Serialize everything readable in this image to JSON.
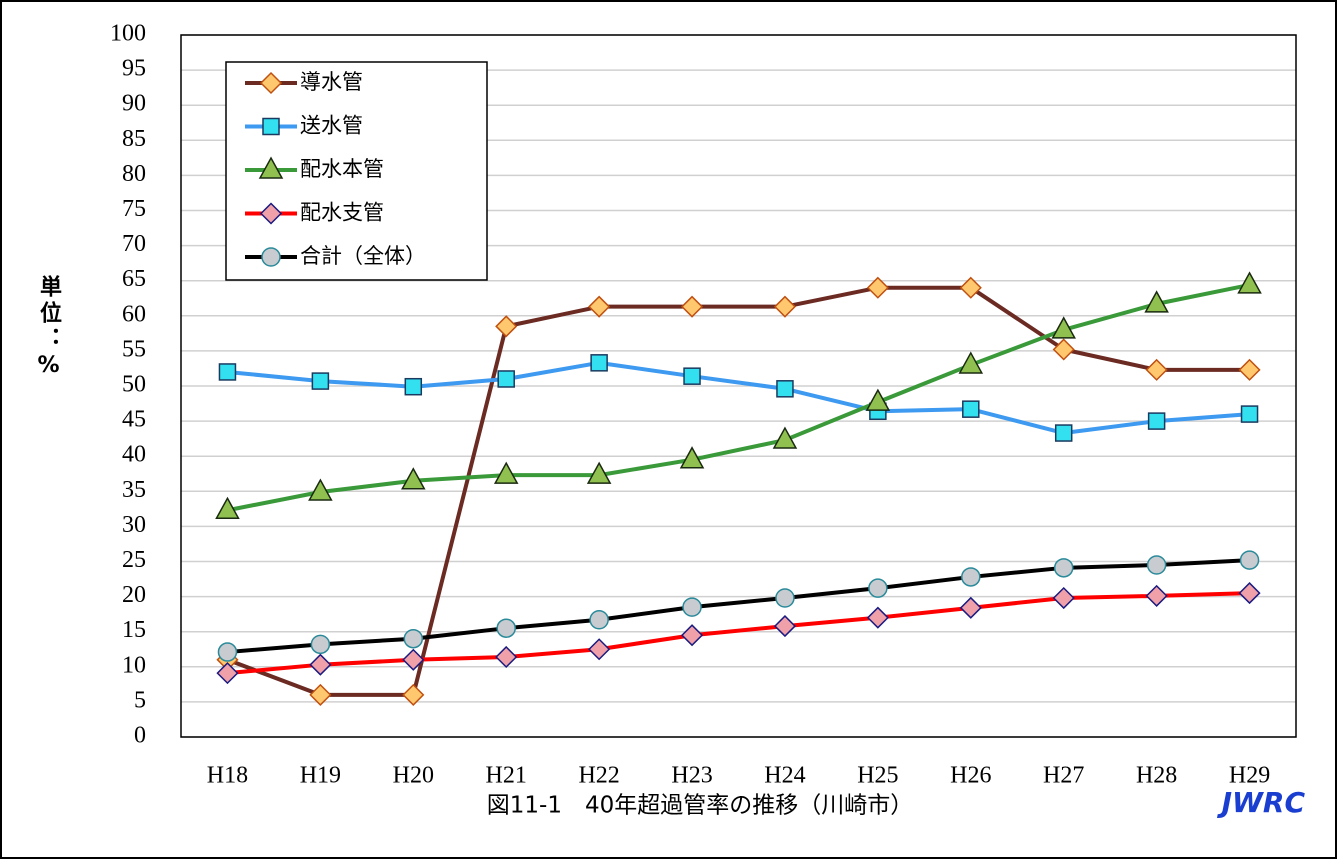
{
  "chart_data": {
    "type": "line",
    "caption": "図11-1　40年超過管率の推移（川崎市）",
    "brand": "JWRC",
    "y_label": "単位：%",
    "categories": [
      "H18",
      "H19",
      "H20",
      "H21",
      "H22",
      "H23",
      "H24",
      "H25",
      "H26",
      "H27",
      "H28",
      "H29"
    ],
    "series": [
      {
        "name": "導水管",
        "color": "#6b2a22",
        "marker": "diamond",
        "marker_color": "#ffc86e",
        "marker_stroke": "#c05010",
        "values": [
          11,
          6,
          6,
          58.5,
          61.3,
          61.3,
          61.3,
          64,
          64,
          55.2,
          52.3,
          52.3
        ]
      },
      {
        "name": "送水管",
        "color": "#3d9af0",
        "marker": "square",
        "marker_color": "#33e0f0",
        "marker_stroke": "#1a3a60",
        "values": [
          52.0,
          50.7,
          49.9,
          51.0,
          53.3,
          51.4,
          49.6,
          46.4,
          46.7,
          43.3,
          45.0,
          46.0
        ]
      },
      {
        "name": "配水本管",
        "color": "#3a9a3a",
        "marker": "triangle",
        "marker_color": "#8fc050",
        "marker_stroke": "#1a2a10",
        "values": [
          32.3,
          34.9,
          36.5,
          37.3,
          37.3,
          39.5,
          42.3,
          47.7,
          53.0,
          58.0,
          61.7,
          64.4
        ]
      },
      {
        "name": "配水支管",
        "color": "#ff0000",
        "marker": "diamond",
        "marker_color": "#f0a0a8",
        "marker_stroke": "#1a1a80",
        "values": [
          9.1,
          10.3,
          11.0,
          11.4,
          12.5,
          14.5,
          15.8,
          17.0,
          18.4,
          19.8,
          20.1,
          20.5
        ]
      },
      {
        "name": "合計（全体）",
        "color": "#000000",
        "marker": "circle",
        "marker_color": "#c8ccd0",
        "marker_stroke": "#2a8a9a",
        "values": [
          12.1,
          13.2,
          14.0,
          15.5,
          16.7,
          18.5,
          19.8,
          21.2,
          22.8,
          24.1,
          24.5,
          25.2
        ]
      }
    ],
    "ylim": [
      0,
      100
    ],
    "yticks": [
      0,
      5,
      10,
      15,
      20,
      25,
      30,
      35,
      40,
      45,
      50,
      55,
      60,
      65,
      70,
      75,
      80,
      85,
      90,
      95,
      100
    ],
    "grid": true
  }
}
